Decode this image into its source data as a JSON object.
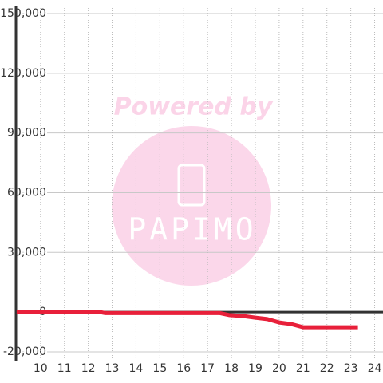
{
  "chart_data": {
    "type": "line",
    "x": [
      9,
      12.5,
      12.7,
      17.5,
      17.9,
      18.5,
      19,
      19.5,
      20,
      20.5,
      21,
      22,
      23.3
    ],
    "series": [
      {
        "color": "#e8203a",
        "values": [
          0,
          0,
          -500,
          -500,
          -1500,
          -2000,
          -2800,
          -3500,
          -5200,
          -6000,
          -7600,
          -7600,
          -7600
        ]
      }
    ],
    "xlim": [
      8.97,
      24.35
    ],
    "xticks": [
      10,
      11,
      12,
      13,
      14,
      15,
      16,
      17,
      18,
      19,
      20,
      21,
      22,
      23,
      24
    ],
    "ylim": [
      -20000,
      150000
    ],
    "yticks": [
      {
        "value": -20000,
        "label": "-20,000"
      },
      0,
      {
        "value": 30000,
        "label": "30,000"
      },
      {
        "value": 60000,
        "label": "60,000"
      },
      {
        "value": 90000,
        "label": "90,000"
      },
      {
        "value": 120000,
        "label": "120,000"
      },
      {
        "value": 150000,
        "label": "150,000"
      }
    ],
    "grid": true,
    "watermark": {
      "title": "Powered by",
      "brand": "PAPIMO"
    }
  }
}
